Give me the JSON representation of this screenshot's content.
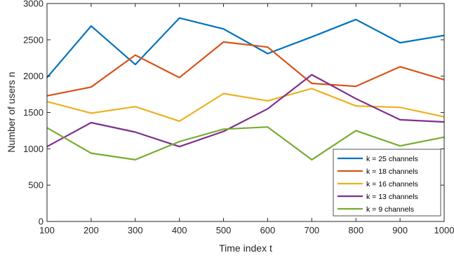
{
  "chart_data": {
    "type": "line",
    "title": "",
    "xlabel": "Time index t",
    "ylabel": "Number of users n",
    "xlim": [
      100,
      1000
    ],
    "ylim": [
      0,
      3000
    ],
    "x_ticks": [
      100,
      200,
      300,
      400,
      500,
      600,
      700,
      800,
      900,
      1000
    ],
    "y_ticks": [
      0,
      500,
      1000,
      1500,
      2000,
      2500,
      3000
    ],
    "grid": false,
    "legend_position": "bottom-right",
    "x": [
      100,
      200,
      300,
      400,
      500,
      600,
      700,
      800,
      900,
      1000
    ],
    "series": [
      {
        "name": "k = 25 channels",
        "color": "#0072BD",
        "values": [
          1980,
          2690,
          2160,
          2800,
          2650,
          2310,
          2540,
          2780,
          2460,
          2560
        ]
      },
      {
        "name": "k = 18 channels",
        "color": "#D95319",
        "values": [
          1730,
          1850,
          2290,
          1980,
          2470,
          2400,
          1900,
          1860,
          2130,
          1950
        ]
      },
      {
        "name": "k = 16 channels",
        "color": "#EDB120",
        "values": [
          1650,
          1490,
          1580,
          1380,
          1760,
          1660,
          1830,
          1590,
          1570,
          1440
        ]
      },
      {
        "name": "k = 13 channels",
        "color": "#7E2F8E",
        "values": [
          1030,
          1360,
          1230,
          1030,
          1240,
          1550,
          2020,
          1690,
          1400,
          1370
        ]
      },
      {
        "name": "k = 9 channels",
        "color": "#77AC30",
        "values": [
          1290,
          940,
          850,
          1100,
          1270,
          1300,
          850,
          1250,
          1040,
          1160
        ]
      }
    ]
  }
}
